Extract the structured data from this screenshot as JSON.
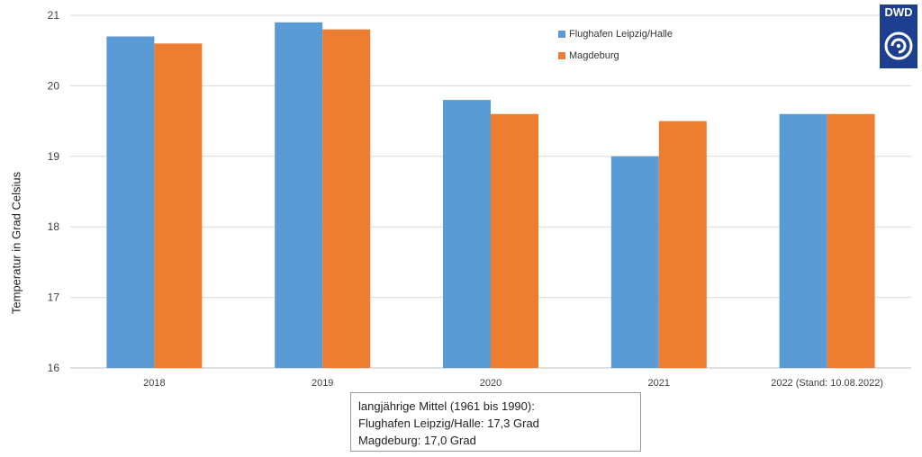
{
  "logo_text": "DWD",
  "note": {
    "line1": "langjährige Mittel (1961 bis 1990):",
    "line2": "Flughafen Leipzig/Halle: 17,3 Grad",
    "line3": "Magdeburg: 17,0 Grad"
  },
  "chart_data": {
    "type": "bar",
    "categories": [
      "2018",
      "2019",
      "2020",
      "2021",
      "2022 (Stand: 10.08.2022)"
    ],
    "series": [
      {
        "name": "Flughafen Leipzig/Halle",
        "values": [
          20.7,
          20.9,
          19.8,
          19.0,
          19.6
        ],
        "color": "#5b9bd5"
      },
      {
        "name": "Magdeburg",
        "values": [
          20.6,
          20.8,
          19.6,
          19.5,
          19.6
        ],
        "color": "#ed7d31"
      }
    ],
    "title": "",
    "xlabel": "",
    "ylabel": "Temperatur in Grad Celsius",
    "ylim": [
      16,
      21
    ],
    "yticks": [
      "16",
      "17",
      "18",
      "19",
      "20",
      "21"
    ],
    "grid": true,
    "legend_position": "top-right"
  }
}
